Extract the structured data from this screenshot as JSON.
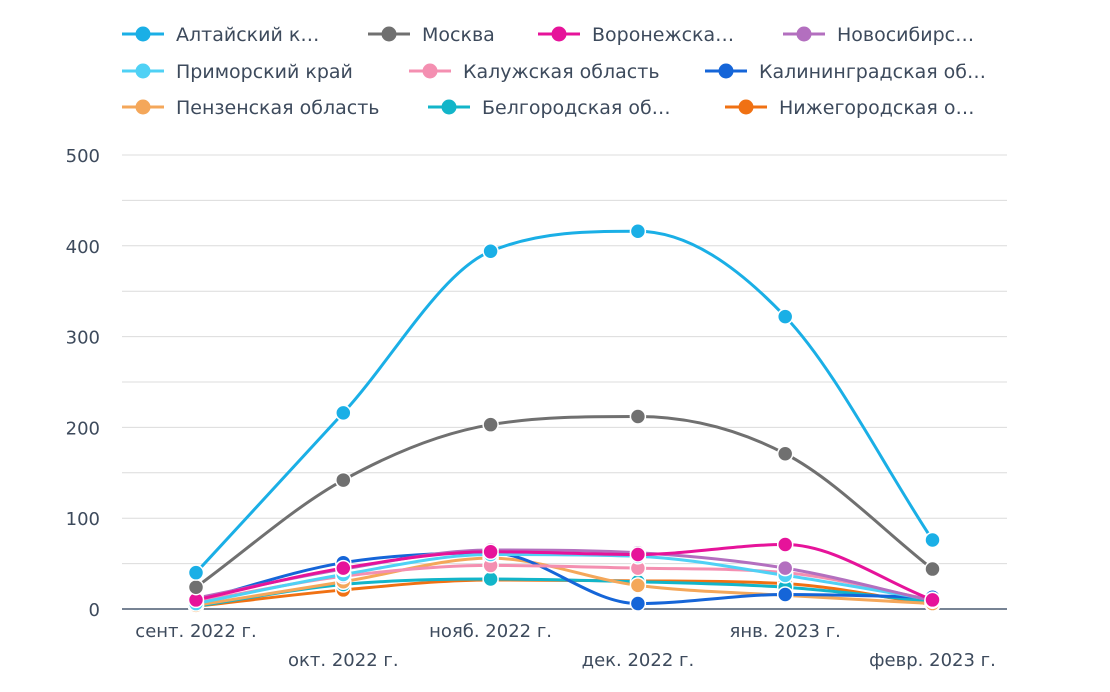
{
  "chart_data": {
    "type": "line",
    "title": "",
    "xlabel": "",
    "ylabel": "",
    "ylim": [
      0,
      500
    ],
    "yticks": [
      0,
      100,
      200,
      300,
      400,
      500
    ],
    "grid": true,
    "legend_position": "top",
    "smooth": true,
    "categories": [
      "сент. 2022 г.",
      "окт. 2022 г.",
      "нояб. 2022 г.",
      "дек. 2022 г.",
      "янв. 2023 г.",
      "февр. 2023 г."
    ],
    "series": [
      {
        "name": "Алтайский к…",
        "color": "#1aafe6",
        "values": [
          40,
          216,
          394,
          416,
          322,
          76
        ]
      },
      {
        "name": "Москва",
        "color": "#707070",
        "values": [
          24,
          142,
          203,
          212,
          171,
          44
        ]
      },
      {
        "name": "Воронежска…",
        "color": "#e6139a",
        "values": [
          10,
          45,
          63,
          60,
          71,
          10
        ]
      },
      {
        "name": "Новосибирс…",
        "color": "#b36fbf",
        "values": [
          12,
          44,
          65,
          62,
          45,
          9
        ]
      },
      {
        "name": "Приморский край",
        "color": "#4fd1f5",
        "values": [
          6,
          38,
          60,
          58,
          37,
          10
        ]
      },
      {
        "name": "Калужская область",
        "color": "#f48fb1",
        "values": [
          8,
          36,
          48,
          45,
          40,
          10
        ]
      },
      {
        "name": "Калининградская об…",
        "color": "#1565d8",
        "values": [
          9,
          51,
          62,
          6,
          16,
          13
        ]
      },
      {
        "name": "Пензенская область",
        "color": "#f4a75a",
        "values": [
          4,
          30,
          56,
          26,
          15,
          6
        ]
      },
      {
        "name": "Белгородская об…",
        "color": "#12b5c9",
        "values": [
          3,
          27,
          33,
          30,
          24,
          8
        ]
      },
      {
        "name": "Нижегородская о…",
        "color": "#f07113",
        "values": [
          3,
          21,
          32,
          31,
          28,
          5
        ]
      }
    ]
  }
}
